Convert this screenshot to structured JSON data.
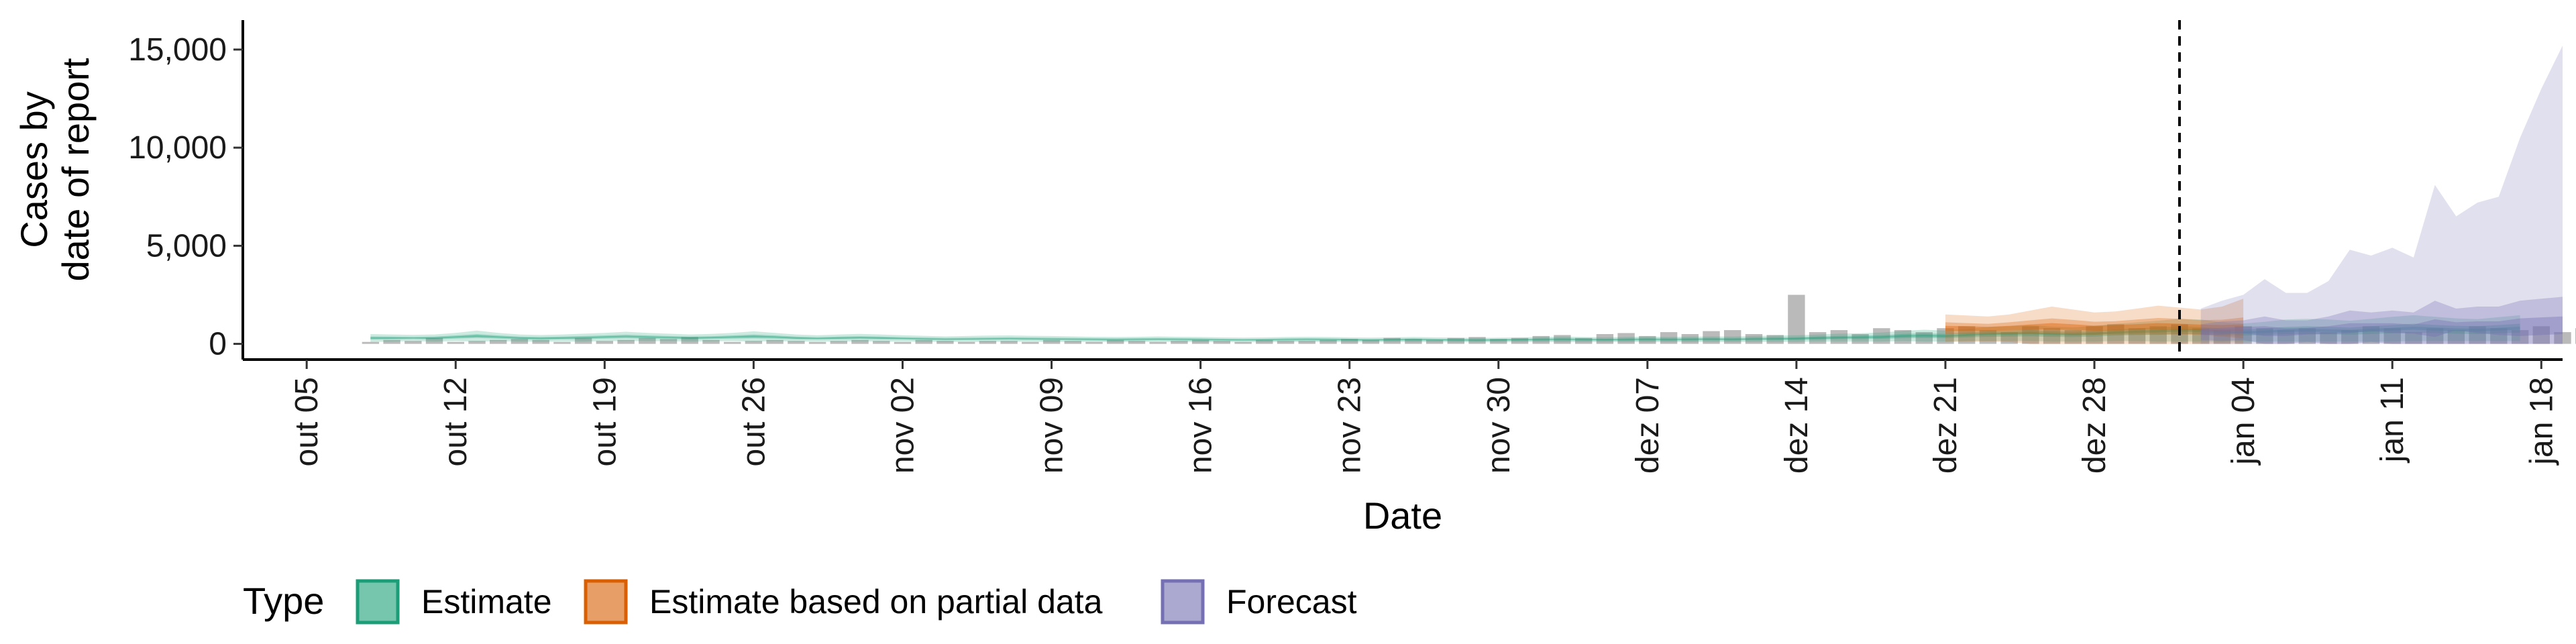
{
  "chart_data": {
    "type": "area",
    "xlabel": "Date",
    "ylabel_lines": [
      "Cases by",
      "date of report"
    ],
    "x_range": [
      "2020-10-02",
      "2021-01-19"
    ],
    "ylim": [
      -800,
      16500
    ],
    "y_ticks": [
      {
        "value": 0,
        "label": "0"
      },
      {
        "value": 5000,
        "label": "5,000"
      },
      {
        "value": 10000,
        "label": "10,000"
      },
      {
        "value": 15000,
        "label": "15,000"
      }
    ],
    "x_ticks": [
      {
        "date": "2020-10-05",
        "label": "out 05"
      },
      {
        "date": "2020-10-12",
        "label": "out 12"
      },
      {
        "date": "2020-10-19",
        "label": "out 19"
      },
      {
        "date": "2020-10-26",
        "label": "out 26"
      },
      {
        "date": "2020-11-02",
        "label": "nov 02"
      },
      {
        "date": "2020-11-09",
        "label": "nov 09"
      },
      {
        "date": "2020-11-16",
        "label": "nov 16"
      },
      {
        "date": "2020-11-23",
        "label": "nov 23"
      },
      {
        "date": "2020-11-30",
        "label": "nov 30"
      },
      {
        "date": "2020-12-07",
        "label": "dez 07"
      },
      {
        "date": "2020-12-14",
        "label": "dez 14"
      },
      {
        "date": "2020-12-21",
        "label": "dez 21"
      },
      {
        "date": "2020-12-28",
        "label": "dez 28"
      },
      {
        "date": "2021-01-04",
        "label": "jan 04"
      },
      {
        "date": "2021-01-11",
        "label": "jan 11"
      },
      {
        "date": "2021-01-18",
        "label": "jan 18"
      }
    ],
    "vline_date": "2021-01-01",
    "reported_cases": {
      "start_date": "2020-10-08",
      "values": [
        100,
        200,
        150,
        300,
        100,
        150,
        200,
        250,
        200,
        100,
        300,
        150,
        200,
        300,
        250,
        350,
        200,
        100,
        150,
        200,
        150,
        100,
        150,
        200,
        150,
        100,
        200,
        150,
        100,
        150,
        150,
        100,
        200,
        150,
        100,
        200,
        150,
        100,
        150,
        200,
        150,
        100,
        200,
        150,
        150,
        200,
        250,
        200,
        300,
        250,
        200,
        300,
        350,
        250,
        300,
        400,
        450,
        300,
        500,
        550,
        400,
        600,
        500,
        650,
        700,
        500,
        450,
        2500,
        600,
        700,
        500,
        800,
        700,
        600,
        800,
        900,
        700,
        600,
        900,
        800,
        700,
        900,
        1000,
        800,
        900,
        1000,
        800,
        700,
        900,
        800,
        700,
        800,
        600,
        700,
        900,
        800,
        600,
        800,
        700,
        900,
        800,
        700,
        900,
        600,
        800,
        900,
        700,
        800,
        900,
        600,
        700,
        800
      ],
      "color": "#8c8c8c"
    },
    "series": [
      {
        "name": "Estimate",
        "color": "#1b9e77",
        "start_date": "2020-10-08",
        "median": [
          300,
          300,
          300,
          300,
          350,
          400,
          350,
          300,
          280,
          300,
          320,
          350,
          380,
          350,
          330,
          300,
          320,
          350,
          380,
          350,
          300,
          280,
          300,
          320,
          300,
          280,
          260,
          240,
          250,
          260,
          270,
          260,
          250,
          240,
          230,
          220,
          230,
          240,
          230,
          220,
          210,
          200,
          210,
          220,
          230,
          220,
          210,
          200,
          210,
          220,
          210,
          200,
          190,
          200,
          210,
          220,
          230,
          220,
          210,
          220,
          230,
          220,
          230,
          240,
          230,
          250,
          260,
          270,
          300,
          320,
          330,
          350,
          400,
          420,
          400,
          450,
          500,
          520,
          550,
          500,
          480,
          520,
          580,
          620,
          650,
          700,
          680,
          600,
          580,
          620,
          680,
          700,
          680,
          650,
          700,
          750,
          800,
          760,
          720,
          700,
          750,
          800
        ],
        "upper90": [
          500,
          480,
          460,
          480,
          560,
          680,
          560,
          480,
          450,
          480,
          520,
          560,
          620,
          560,
          520,
          480,
          510,
          560,
          640,
          560,
          480,
          440,
          480,
          510,
          480,
          440,
          410,
          380,
          400,
          420,
          430,
          410,
          400,
          380,
          360,
          350,
          360,
          380,
          360,
          350,
          330,
          320,
          330,
          350,
          360,
          350,
          330,
          320,
          330,
          350,
          330,
          320,
          300,
          320,
          330,
          350,
          370,
          350,
          330,
          350,
          370,
          350,
          370,
          380,
          370,
          400,
          420,
          440,
          480,
          520,
          540,
          580,
          660,
          720,
          680,
          760,
          860,
          900,
          960,
          880,
          840,
          920,
          1020,
          1100,
          1180,
          1280,
          1240,
          1100,
          1040,
          1120,
          1240,
          1280,
          1240,
          1180,
          1280,
          1380,
          1460,
          1380,
          1300,
          1260,
          1360,
          1460
        ],
        "upper50": [
          380,
          370,
          360,
          370,
          430,
          500,
          430,
          370,
          350,
          370,
          400,
          430,
          470,
          430,
          400,
          370,
          390,
          430,
          480,
          430,
          370,
          340,
          370,
          390,
          370,
          340,
          320,
          300,
          310,
          320,
          330,
          320,
          310,
          300,
          290,
          280,
          290,
          300,
          290,
          280,
          260,
          250,
          260,
          280,
          290,
          280,
          260,
          250,
          260,
          280,
          260,
          250,
          240,
          250,
          260,
          280,
          290,
          280,
          260,
          280,
          290,
          280,
          290,
          300,
          290,
          320,
          330,
          340,
          380,
          400,
          420,
          440,
          510,
          540,
          510,
          570,
          640,
          670,
          710,
          640,
          610,
          670,
          740,
          790,
          840,
          900,
          870,
          770,
          740,
          790,
          870,
          900,
          870,
          830,
          900,
          960,
          1030,
          970,
          920,
          900,
          960,
          1030
        ],
        "upper20": [
          330,
          330,
          320,
          330,
          380,
          440,
          380,
          330,
          310,
          330,
          350,
          380,
          410,
          380,
          360,
          330,
          350,
          380,
          420,
          380,
          330,
          300,
          330,
          350,
          330,
          300,
          280,
          260,
          270,
          280,
          290,
          280,
          270,
          260,
          250,
          240,
          250,
          260,
          250,
          240,
          230,
          220,
          230,
          240,
          250,
          240,
          230,
          220,
          230,
          240,
          230,
          220,
          210,
          220,
          230,
          240,
          250,
          240,
          230,
          240,
          250,
          240,
          250,
          260,
          250,
          270,
          280,
          300,
          330,
          350,
          360,
          380,
          440,
          460,
          440,
          500,
          550,
          580,
          610,
          550,
          530,
          580,
          640,
          680,
          720,
          770,
          750,
          660,
          640,
          680,
          750,
          770,
          750,
          720,
          770,
          820,
          880,
          840,
          790,
          770,
          820,
          880
        ]
      },
      {
        "name": "Estimate based on partial data",
        "color": "#d95f02",
        "start_date": "2020-12-21",
        "median": [
          800,
          780,
          760,
          800,
          850,
          900,
          850,
          800,
          820,
          860,
          900,
          880,
          840,
          800,
          820
        ],
        "upper90": [
          1500,
          1450,
          1400,
          1500,
          1700,
          1900,
          1750,
          1600,
          1650,
          1800,
          1950,
          1850,
          1750,
          1900,
          2300
        ],
        "upper50": [
          1100,
          1060,
          1020,
          1100,
          1200,
          1300,
          1220,
          1130,
          1160,
          1240,
          1320,
          1280,
          1210,
          1230,
          1350
        ],
        "upper20": [
          920,
          900,
          870,
          920,
          990,
          1060,
          1000,
          930,
          960,
          1010,
          1060,
          1030,
          980,
          960,
          1000
        ]
      },
      {
        "name": "Forecast",
        "color": "#7570b3",
        "start_date": "2021-01-02",
        "median": [
          600,
          650,
          700,
          650,
          600,
          650,
          700,
          800,
          850,
          800,
          750,
          800,
          900,
          850,
          800,
          850,
          900,
          950
        ],
        "upper90": [
          1800,
          2200,
          2500,
          3300,
          2600,
          2600,
          3200,
          4800,
          4500,
          4900,
          4400,
          8100,
          6500,
          7200,
          7500,
          10500,
          13000,
          15200
        ],
        "upper50": [
          1000,
          1150,
          1200,
          1400,
          1200,
          1200,
          1400,
          1700,
          1600,
          1700,
          1600,
          2200,
          1800,
          1900,
          1900,
          2200,
          2300,
          2400
        ],
        "upper20": [
          750,
          820,
          860,
          900,
          800,
          820,
          900,
          1050,
          1050,
          1050,
          980,
          1250,
          1100,
          1150,
          1150,
          1300,
          1350,
          1400
        ]
      }
    ],
    "legend": {
      "title": "Type",
      "placement": "bottom",
      "items": [
        {
          "label": "Estimate",
          "color": "#1b9e77"
        },
        {
          "label": "Estimate based on partial data",
          "color": "#d95f02"
        },
        {
          "label": "Forecast",
          "color": "#7570b3"
        }
      ]
    }
  }
}
